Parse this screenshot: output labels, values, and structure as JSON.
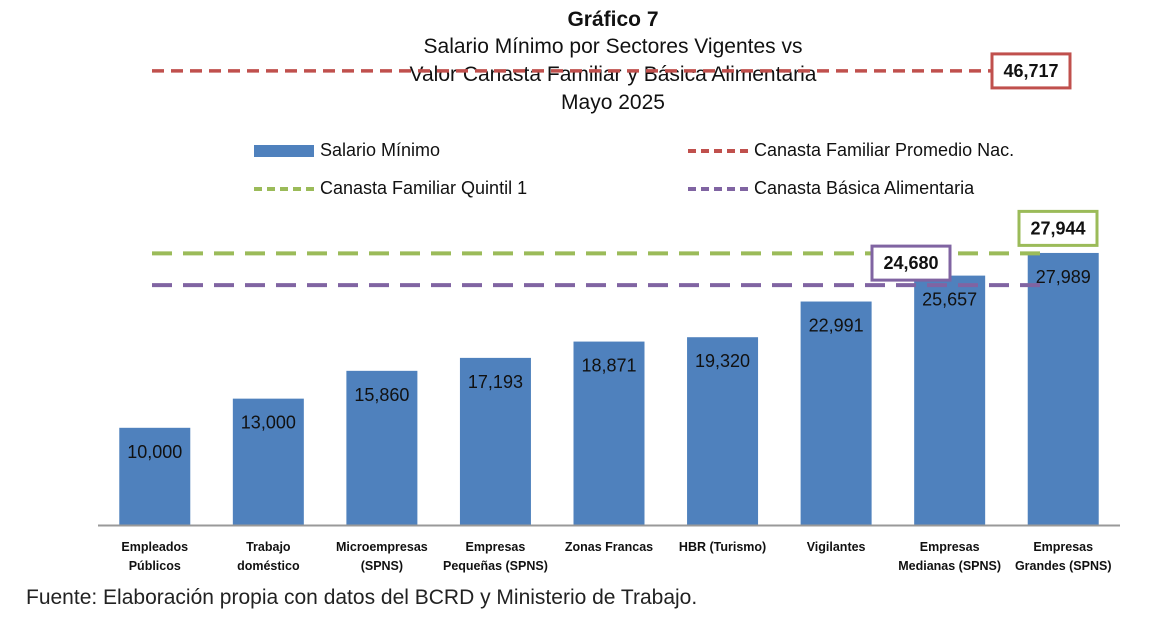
{
  "titles": {
    "heading": "Gráfico 7",
    "line1": "Salario Mínimo por Sectores Vigentes vs",
    "line2": "Valor Canasta Familiar y Básica Alimentaria",
    "line3": "Mayo 2025"
  },
  "legend": {
    "salario": "Salario Mínimo",
    "promedio": "Canasta Familiar Promedio Nac.",
    "quintil": "Canasta Familiar Quintil 1",
    "basica": "Canasta Básica Alimentaria"
  },
  "colors": {
    "bar": "#4f81bd",
    "promedio": "#c0504d",
    "quintil": "#9bbb59",
    "basica": "#8064a2",
    "axis": "#999999"
  },
  "footer": "Fuente: Elaboración propia con datos del BCRD y Ministerio de Trabajo.",
  "chart_data": {
    "type": "bar",
    "categories": [
      [
        "Empleados",
        "Públicos"
      ],
      [
        "Trabajo",
        "doméstico"
      ],
      [
        "Microempresas",
        "(SPNS)"
      ],
      [
        "Empresas",
        "Pequeñas (SPNS)"
      ],
      [
        "Zonas Francas"
      ],
      [
        "HBR (Turismo)"
      ],
      [
        "Vigilantes"
      ],
      [
        "Empresas",
        "Medianas (SPNS)"
      ],
      [
        "Empresas",
        "Grandes (SPNS)"
      ]
    ],
    "values": [
      10000,
      13000,
      15860,
      17193,
      18871,
      19320,
      22991,
      25657,
      27989
    ],
    "value_labels": [
      "10,000",
      "13,000",
      "15,860",
      "17,193",
      "18,871",
      "19,320",
      "22,991",
      "25,657",
      "27,989"
    ],
    "reference_lines": [
      {
        "name": "Canasta Familiar Promedio Nac.",
        "value": 46717,
        "label": "46,717"
      },
      {
        "name": "Canasta Familiar Quintil 1",
        "value": 27944,
        "label": "27,944"
      },
      {
        "name": "Canasta Básica Alimentaria",
        "value": 24680,
        "label": "24,680"
      }
    ],
    "ylim": [
      0,
      50000
    ],
    "grid": false,
    "legend_position": "top"
  }
}
